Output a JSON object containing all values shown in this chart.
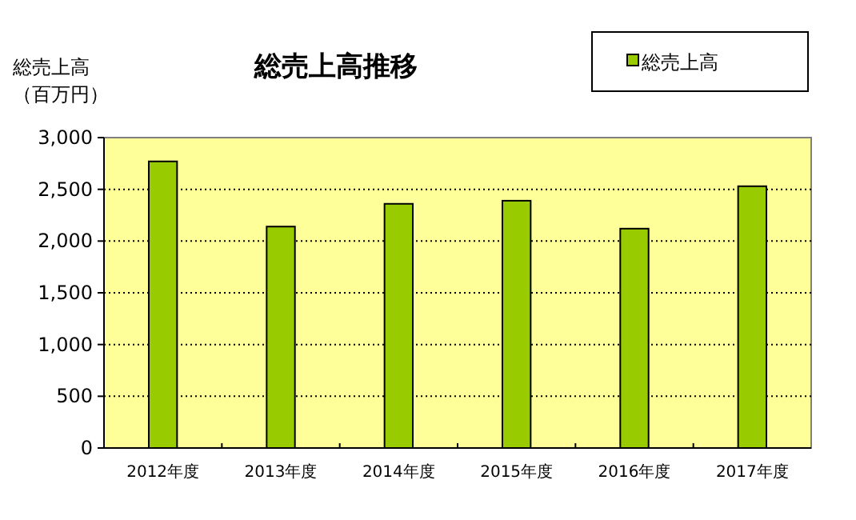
{
  "chart_data": {
    "type": "bar",
    "title": "総売上高推移",
    "ylabel": "総売上高（百万円）",
    "categories": [
      "2012年度",
      "2013年度",
      "2014年度",
      "2015年度",
      "2016年度",
      "2017年度"
    ],
    "series": [
      {
        "name": "総売上高",
        "color": "#99cc00",
        "values": [
          2770,
          2140,
          2360,
          2390,
          2120,
          2530
        ]
      }
    ],
    "ylim": [
      0,
      3000
    ],
    "yticks": [
      {
        "value": 0,
        "label": "0"
      },
      {
        "value": 500,
        "label": "500"
      },
      {
        "value": 1000,
        "label": "1,000"
      },
      {
        "value": 1500,
        "label": "1,500"
      },
      {
        "value": 2000,
        "label": "2,000"
      },
      {
        "value": 2500,
        "label": "2,500"
      },
      {
        "value": 3000,
        "label": "3,000"
      }
    ],
    "grid": "y",
    "legend": "top right"
  }
}
